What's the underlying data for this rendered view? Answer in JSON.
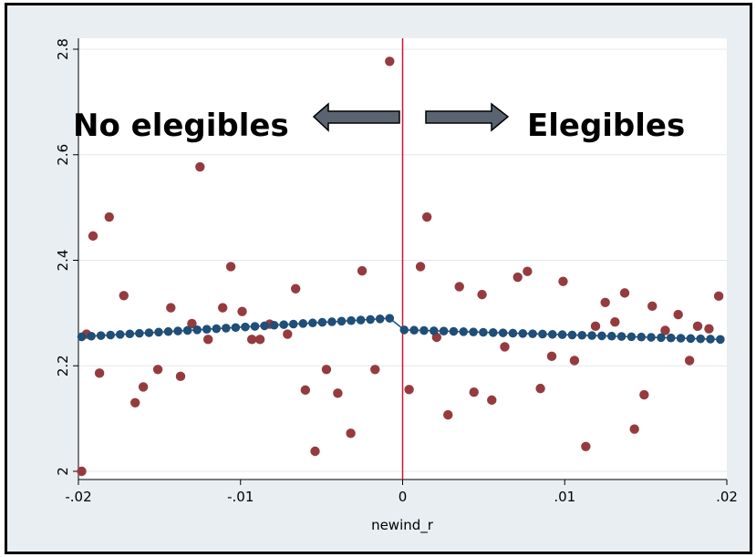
{
  "chart_data": {
    "type": "scatter",
    "xlabel": "newind_r",
    "ylabel": "",
    "xlim": [
      -0.02,
      0.02
    ],
    "ylim": [
      2.0,
      2.8
    ],
    "x_ticks": [
      -0.02,
      -0.01,
      0,
      0.01,
      0.02
    ],
    "x_tick_labels": [
      "-.02",
      "-.01",
      "0",
      ".01",
      ".02"
    ],
    "y_ticks": [
      2.0,
      2.2,
      2.4,
      2.6,
      2.8
    ],
    "y_tick_labels": [
      "2",
      "2.2",
      "2.4",
      "2.6",
      "2.8"
    ],
    "grid": "horizontal",
    "cutoff": 0,
    "annotations": {
      "left": "No elegibles",
      "right": "Elegibles"
    },
    "colors": {
      "background": "#e8eef2",
      "plot_background": "#ffffff",
      "scatter": "#953b3f",
      "fit": "#1f4e79",
      "cutoff_line": "#cc1236",
      "arrow_fill": "#5a6470"
    },
    "series": [
      {
        "type": "scatter",
        "points": [
          [
            -0.0198,
            2.0
          ],
          [
            -0.0195,
            2.26
          ],
          [
            -0.0191,
            2.446
          ],
          [
            -0.0187,
            2.186
          ],
          [
            -0.0181,
            2.482
          ],
          [
            -0.0172,
            2.333
          ],
          [
            -0.0165,
            2.13
          ],
          [
            -0.016,
            2.16
          ],
          [
            -0.0151,
            2.193
          ],
          [
            -0.0143,
            2.31
          ],
          [
            -0.0137,
            2.18
          ],
          [
            -0.013,
            2.28
          ],
          [
            -0.0125,
            2.577
          ],
          [
            -0.012,
            2.25
          ],
          [
            -0.0111,
            2.31
          ],
          [
            -0.0106,
            2.388
          ],
          [
            -0.0099,
            2.303
          ],
          [
            -0.0093,
            2.25
          ],
          [
            -0.0088,
            2.25
          ],
          [
            -0.0082,
            2.279
          ],
          [
            -0.0071,
            2.26
          ],
          [
            -0.0066,
            2.346
          ],
          [
            -0.006,
            2.154
          ],
          [
            -0.0054,
            2.038
          ],
          [
            -0.0047,
            2.193
          ],
          [
            -0.004,
            2.148
          ],
          [
            -0.0032,
            2.072
          ],
          [
            -0.0025,
            2.38
          ],
          [
            -0.0017,
            2.193
          ],
          [
            -0.0008,
            2.777
          ],
          [
            0.0004,
            2.155
          ],
          [
            0.0011,
            2.388
          ],
          [
            0.0015,
            2.482
          ],
          [
            0.0021,
            2.254
          ],
          [
            0.0028,
            2.107
          ],
          [
            0.0035,
            2.35
          ],
          [
            0.0044,
            2.15
          ],
          [
            0.0049,
            2.335
          ],
          [
            0.0055,
            2.135
          ],
          [
            0.0063,
            2.236
          ],
          [
            0.0071,
            2.368
          ],
          [
            0.0077,
            2.379
          ],
          [
            0.0085,
            2.157
          ],
          [
            0.0092,
            2.218
          ],
          [
            0.0099,
            2.36
          ],
          [
            0.0106,
            2.21
          ],
          [
            0.0113,
            2.047
          ],
          [
            0.0119,
            2.275
          ],
          [
            0.0125,
            2.32
          ],
          [
            0.0131,
            2.283
          ],
          [
            0.0137,
            2.338
          ],
          [
            0.0143,
            2.08
          ],
          [
            0.0149,
            2.145
          ],
          [
            0.0154,
            2.313
          ],
          [
            0.0162,
            2.267
          ],
          [
            0.017,
            2.297
          ],
          [
            0.0177,
            2.21
          ],
          [
            0.0182,
            2.275
          ],
          [
            0.0189,
            2.27
          ],
          [
            0.0195,
            2.332
          ]
        ]
      },
      {
        "type": "line-markers",
        "segments": [
          {
            "x": [
              -0.0198,
              -0.0008
            ],
            "y": [
              2.255,
              2.29
            ]
          },
          {
            "x": [
              0.0001,
              0.0196
            ],
            "y": [
              2.268,
              2.25
            ]
          }
        ],
        "points_per_segment": 33
      }
    ]
  }
}
